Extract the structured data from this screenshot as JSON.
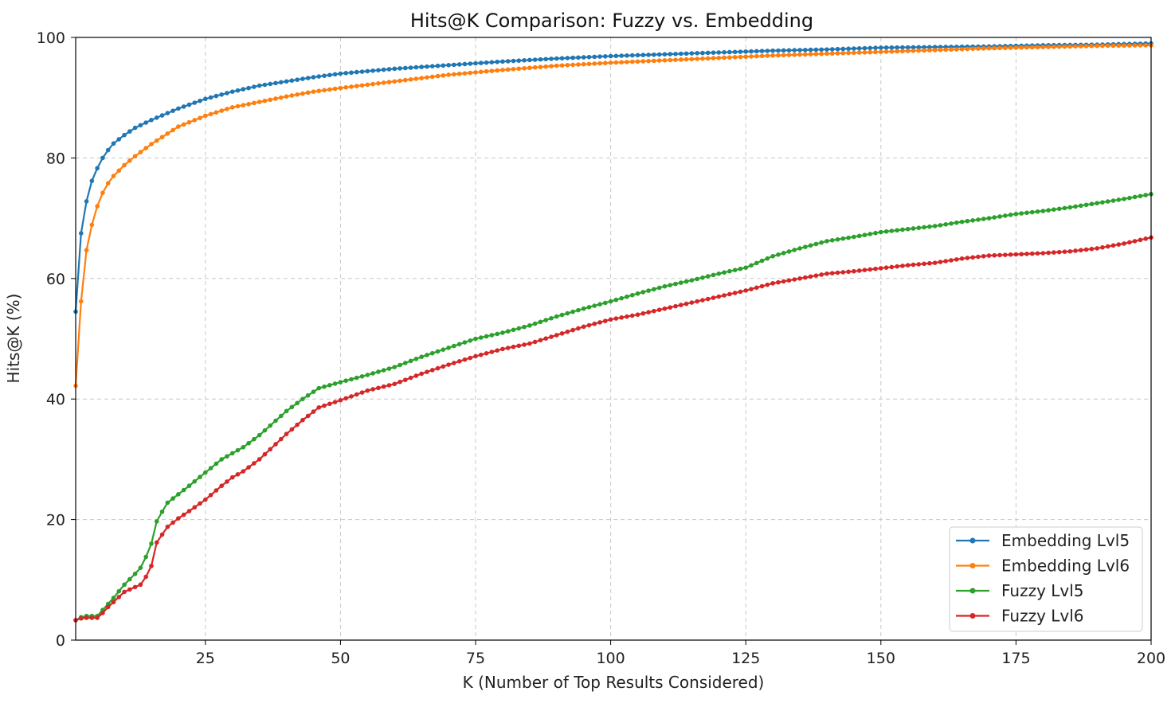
{
  "chart_data": {
    "type": "line",
    "title": "Hits@K Comparison: Fuzzy vs. Embedding",
    "xlabel": "K (Number of Top Results Considered)",
    "ylabel": "Hits@K (%)",
    "xlim": [
      1,
      200
    ],
    "ylim": [
      0,
      100
    ],
    "xticks": [
      25,
      50,
      75,
      100,
      125,
      150,
      175,
      200
    ],
    "yticks": [
      0,
      20,
      40,
      60,
      80,
      100
    ],
    "grid": true,
    "legend_position": "lower-right",
    "series": [
      {
        "name": "Embedding Lvl5",
        "color": "#1f77b4",
        "anchors": [
          [
            1,
            54.5
          ],
          [
            2,
            67.5
          ],
          [
            3,
            72.8
          ],
          [
            4,
            76.2
          ],
          [
            5,
            78.3
          ],
          [
            6,
            80
          ],
          [
            7,
            81.3
          ],
          [
            8,
            82.4
          ],
          [
            10,
            83.8
          ],
          [
            12,
            85.0
          ],
          [
            15,
            86.3
          ],
          [
            20,
            88.2
          ],
          [
            25,
            89.8
          ],
          [
            30,
            91.0
          ],
          [
            35,
            92.0
          ],
          [
            40,
            92.7
          ],
          [
            45,
            93.4
          ],
          [
            50,
            94.0
          ],
          [
            60,
            94.8
          ],
          [
            70,
            95.4
          ],
          [
            80,
            96.0
          ],
          [
            90,
            96.5
          ],
          [
            100,
            96.9
          ],
          [
            110,
            97.2
          ],
          [
            120,
            97.5
          ],
          [
            130,
            97.8
          ],
          [
            140,
            98.0
          ],
          [
            150,
            98.3
          ],
          [
            160,
            98.4
          ],
          [
            170,
            98.5
          ],
          [
            180,
            98.7
          ],
          [
            190,
            98.8
          ],
          [
            200,
            99.0
          ]
        ]
      },
      {
        "name": "Embedding Lvl6",
        "color": "#ff7f0e",
        "anchors": [
          [
            1,
            42.2
          ],
          [
            2,
            56.2
          ],
          [
            3,
            64.7
          ],
          [
            4,
            68.9
          ],
          [
            5,
            72.0
          ],
          [
            6,
            74.2
          ],
          [
            7,
            75.8
          ],
          [
            8,
            77.0
          ],
          [
            10,
            78.8
          ],
          [
            12,
            80.3
          ],
          [
            15,
            82.3
          ],
          [
            20,
            85.2
          ],
          [
            25,
            87.0
          ],
          [
            30,
            88.4
          ],
          [
            35,
            89.3
          ],
          [
            40,
            90.2
          ],
          [
            45,
            91.0
          ],
          [
            50,
            91.6
          ],
          [
            60,
            92.7
          ],
          [
            70,
            93.8
          ],
          [
            80,
            94.6
          ],
          [
            90,
            95.3
          ],
          [
            100,
            95.8
          ],
          [
            110,
            96.2
          ],
          [
            120,
            96.6
          ],
          [
            130,
            97.0
          ],
          [
            140,
            97.3
          ],
          [
            150,
            97.6
          ],
          [
            160,
            97.9
          ],
          [
            170,
            98.2
          ],
          [
            180,
            98.4
          ],
          [
            190,
            98.6
          ],
          [
            200,
            98.7
          ]
        ]
      },
      {
        "name": "Fuzzy Lvl5",
        "color": "#2ca02c",
        "anchors": [
          [
            1,
            3.3
          ],
          [
            2,
            3.8
          ],
          [
            3,
            4.0
          ],
          [
            4,
            4.0
          ],
          [
            5,
            4.0
          ],
          [
            6,
            5.0
          ],
          [
            7,
            6.0
          ],
          [
            8,
            7.0
          ],
          [
            10,
            9.2
          ],
          [
            12,
            11.0
          ],
          [
            13,
            12.0
          ],
          [
            14,
            13.8
          ],
          [
            15,
            16.0
          ],
          [
            16,
            19.7
          ],
          [
            17,
            21.3
          ],
          [
            18,
            22.8
          ],
          [
            20,
            24.2
          ],
          [
            22,
            25.6
          ],
          [
            25,
            27.8
          ],
          [
            28,
            30.0
          ],
          [
            30,
            31.0
          ],
          [
            32,
            32.0
          ],
          [
            35,
            34.0
          ],
          [
            38,
            36.4
          ],
          [
            40,
            38.0
          ],
          [
            43,
            40.0
          ],
          [
            46,
            41.8
          ],
          [
            50,
            42.8
          ],
          [
            55,
            44.0
          ],
          [
            60,
            45.3
          ],
          [
            65,
            47.0
          ],
          [
            70,
            48.5
          ],
          [
            75,
            50.0
          ],
          [
            80,
            51.0
          ],
          [
            85,
            52.2
          ],
          [
            90,
            53.7
          ],
          [
            95,
            55.0
          ],
          [
            100,
            56.2
          ],
          [
            105,
            57.5
          ],
          [
            110,
            58.7
          ],
          [
            115,
            59.7
          ],
          [
            120,
            60.8
          ],
          [
            125,
            61.8
          ],
          [
            130,
            63.7
          ],
          [
            135,
            65.0
          ],
          [
            140,
            66.2
          ],
          [
            145,
            66.9
          ],
          [
            150,
            67.7
          ],
          [
            155,
            68.2
          ],
          [
            160,
            68.7
          ],
          [
            165,
            69.4
          ],
          [
            170,
            70.0
          ],
          [
            175,
            70.7
          ],
          [
            180,
            71.2
          ],
          [
            185,
            71.8
          ],
          [
            190,
            72.5
          ],
          [
            195,
            73.2
          ],
          [
            200,
            74.0
          ]
        ]
      },
      {
        "name": "Fuzzy Lvl6",
        "color": "#d62728",
        "anchors": [
          [
            1,
            3.3
          ],
          [
            2,
            3.6
          ],
          [
            3,
            3.7
          ],
          [
            4,
            3.7
          ],
          [
            5,
            3.7
          ],
          [
            6,
            4.5
          ],
          [
            7,
            5.5
          ],
          [
            8,
            6.3
          ],
          [
            10,
            8.0
          ],
          [
            12,
            8.8
          ],
          [
            13,
            9.2
          ],
          [
            14,
            10.5
          ],
          [
            15,
            12.3
          ],
          [
            16,
            16.2
          ],
          [
            17,
            17.5
          ],
          [
            18,
            18.8
          ],
          [
            20,
            20.2
          ],
          [
            22,
            21.4
          ],
          [
            25,
            23.3
          ],
          [
            28,
            25.6
          ],
          [
            30,
            27.0
          ],
          [
            32,
            28.0
          ],
          [
            35,
            30.0
          ],
          [
            38,
            32.5
          ],
          [
            40,
            34.2
          ],
          [
            43,
            36.5
          ],
          [
            46,
            38.6
          ],
          [
            50,
            39.8
          ],
          [
            55,
            41.4
          ],
          [
            60,
            42.5
          ],
          [
            65,
            44.2
          ],
          [
            70,
            45.7
          ],
          [
            75,
            47.1
          ],
          [
            80,
            48.3
          ],
          [
            85,
            49.2
          ],
          [
            90,
            50.6
          ],
          [
            95,
            52.0
          ],
          [
            100,
            53.2
          ],
          [
            105,
            54.0
          ],
          [
            110,
            55.0
          ],
          [
            115,
            56.0
          ],
          [
            120,
            57.0
          ],
          [
            125,
            58.0
          ],
          [
            130,
            59.2
          ],
          [
            135,
            60.0
          ],
          [
            140,
            60.8
          ],
          [
            145,
            61.2
          ],
          [
            150,
            61.7
          ],
          [
            155,
            62.2
          ],
          [
            160,
            62.6
          ],
          [
            165,
            63.3
          ],
          [
            170,
            63.8
          ],
          [
            175,
            64.0
          ],
          [
            180,
            64.2
          ],
          [
            185,
            64.5
          ],
          [
            190,
            65.0
          ],
          [
            195,
            65.8
          ],
          [
            200,
            66.8
          ]
        ]
      }
    ]
  }
}
